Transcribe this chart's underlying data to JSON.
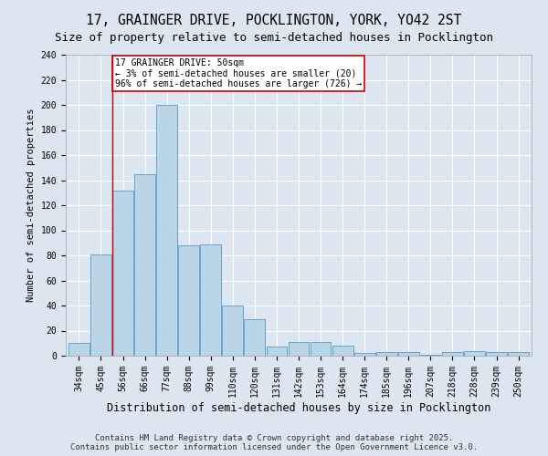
{
  "title": "17, GRAINGER DRIVE, POCKLINGTON, YORK, YO42 2ST",
  "subtitle": "Size of property relative to semi-detached houses in Pocklington",
  "xlabel": "Distribution of semi-detached houses by size in Pocklington",
  "ylabel": "Number of semi-detached properties",
  "categories": [
    "34sqm",
    "45sqm",
    "56sqm",
    "66sqm",
    "77sqm",
    "88sqm",
    "99sqm",
    "110sqm",
    "120sqm",
    "131sqm",
    "142sqm",
    "153sqm",
    "164sqm",
    "174sqm",
    "185sqm",
    "196sqm",
    "207sqm",
    "218sqm",
    "228sqm",
    "239sqm",
    "250sqm"
  ],
  "values": [
    10,
    81,
    132,
    145,
    200,
    88,
    89,
    40,
    29,
    7,
    11,
    11,
    8,
    2,
    3,
    3,
    1,
    3,
    4,
    3,
    3
  ],
  "bar_color": "#bad4e8",
  "bar_edge_color": "#5a9ac5",
  "annotation_box_text": "17 GRAINGER DRIVE: 50sqm\n← 3% of semi-detached houses are smaller (20)\n96% of semi-detached houses are larger (726) →",
  "annotation_box_color": "#cc0000",
  "vline_x": 1.5,
  "ylim": [
    0,
    240
  ],
  "yticks": [
    0,
    20,
    40,
    60,
    80,
    100,
    120,
    140,
    160,
    180,
    200,
    220,
    240
  ],
  "background_color": "#dce6f0",
  "plot_background": "#dce6f0",
  "footer": "Contains HM Land Registry data © Crown copyright and database right 2025.\nContains public sector information licensed under the Open Government Licence v3.0.",
  "title_fontsize": 10.5,
  "subtitle_fontsize": 9,
  "xlabel_fontsize": 8.5,
  "ylabel_fontsize": 7.5,
  "footer_fontsize": 6.5,
  "tick_fontsize": 7,
  "annot_fontsize": 7
}
